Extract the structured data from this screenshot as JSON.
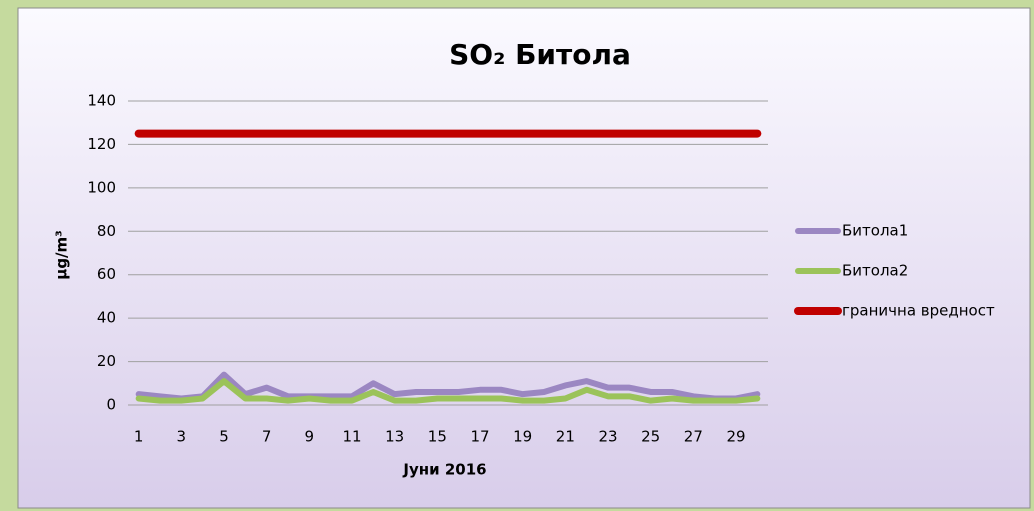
{
  "chart_data": {
    "type": "line",
    "title": "SO₂ Битола",
    "x_label": "Јуни 2016",
    "y_label": "μg/m³",
    "categories": [
      1,
      null,
      3,
      null,
      5,
      null,
      7,
      null,
      9,
      null,
      11,
      null,
      13,
      null,
      15,
      null,
      17,
      null,
      19,
      null,
      21,
      null,
      23,
      null,
      25,
      null,
      27,
      null,
      29,
      null
    ],
    "series": [
      {
        "name": "Битола1",
        "color": "#9b87c2",
        "values": [
          5,
          4,
          3,
          4,
          14,
          5,
          8,
          4,
          4,
          4,
          4,
          10,
          5,
          6,
          6,
          6,
          7,
          7,
          5,
          6,
          9,
          11,
          8,
          8,
          6,
          6,
          4,
          3,
          3,
          5
        ]
      },
      {
        "name": "Битола2",
        "color": "#9bc35a",
        "values": [
          3,
          2,
          2,
          3,
          11,
          3,
          3,
          2,
          3,
          2,
          2,
          6,
          2,
          2,
          3,
          3,
          3,
          3,
          2,
          2,
          3,
          7,
          4,
          4,
          2,
          3,
          2,
          2,
          2,
          3
        ]
      },
      {
        "name": "гранична вредност",
        "color": "#c00000",
        "values": [
          125,
          125,
          125,
          125,
          125,
          125,
          125,
          125,
          125,
          125,
          125,
          125,
          125,
          125,
          125,
          125,
          125,
          125,
          125,
          125,
          125,
          125,
          125,
          125,
          125,
          125,
          125,
          125,
          125,
          125
        ]
      }
    ],
    "ylim": [
      0,
      140
    ],
    "yticks": [
      0,
      20,
      40,
      60,
      80,
      100,
      120,
      140
    ],
    "grid": true,
    "legend": "right"
  }
}
